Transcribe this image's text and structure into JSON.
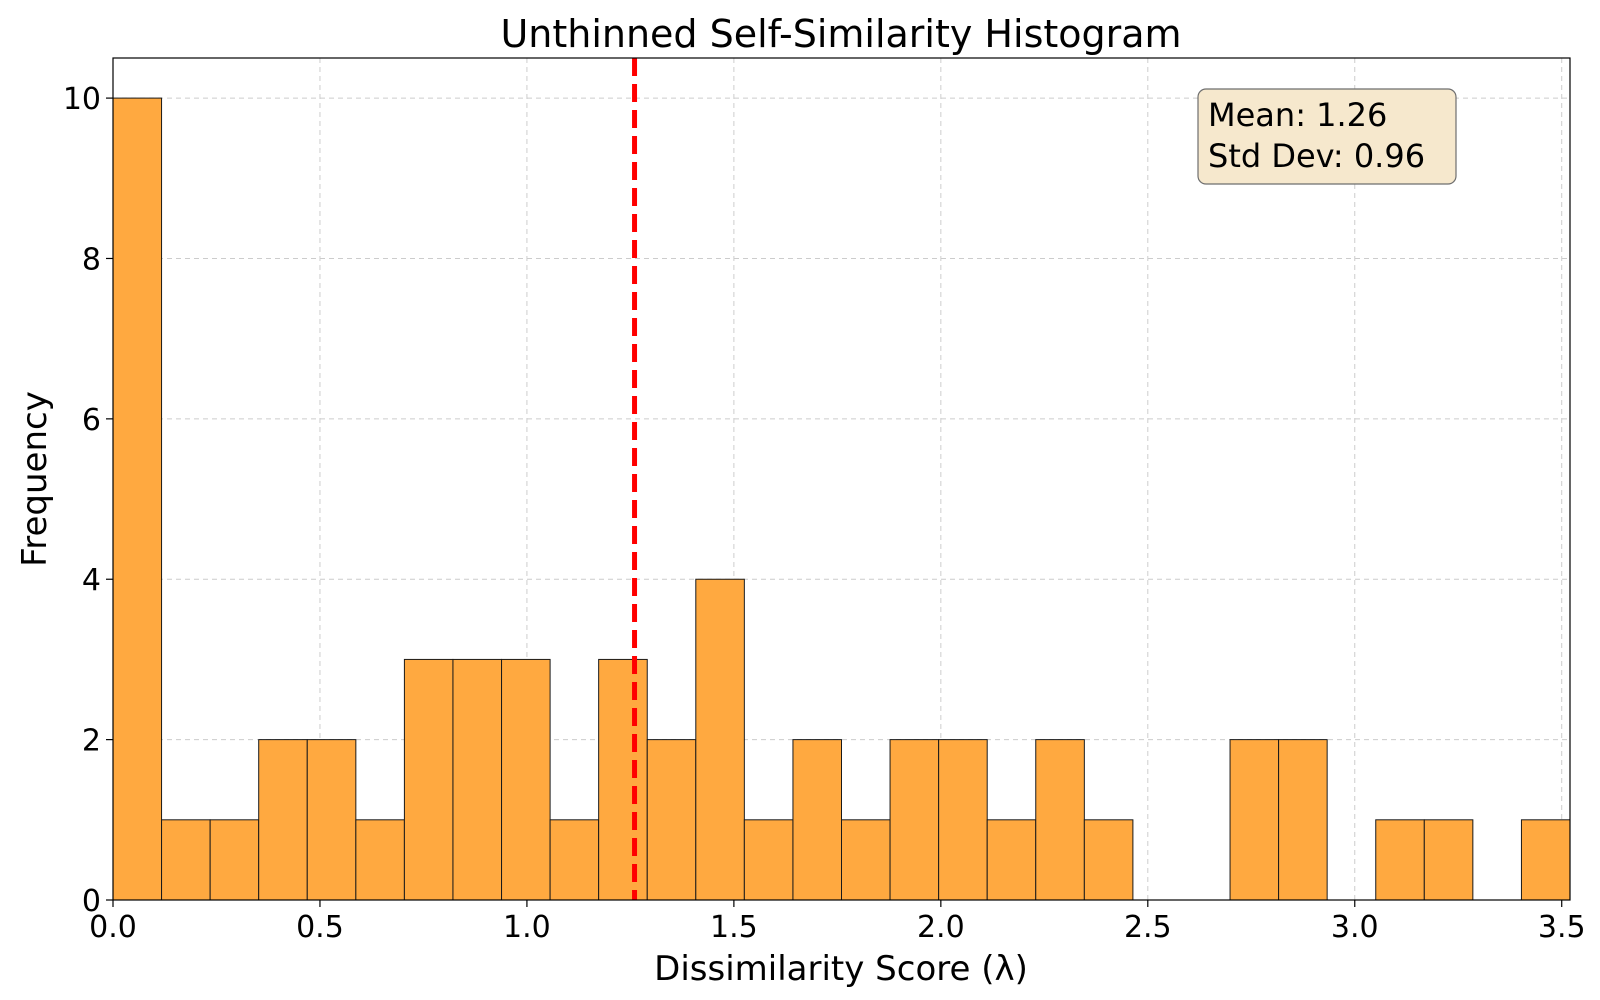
{
  "chart_data": {
    "type": "bar",
    "title": "Unthinned Self-Similarity Histogram",
    "xlabel": "Dissimilarity Score (λ)",
    "ylabel": "Frequency",
    "xlim": [
      0.0,
      3.52
    ],
    "ylim": [
      0,
      10.5
    ],
    "bin_edges": [
      0.0,
      0.1173,
      0.2347,
      0.352,
      0.4693,
      0.5867,
      0.704,
      0.8213,
      0.9387,
      1.056,
      1.1733,
      1.2907,
      1.408,
      1.5253,
      1.6427,
      1.76,
      1.8773,
      1.9947,
      2.112,
      2.2293,
      2.3467,
      2.464,
      2.5813,
      2.6987,
      2.816,
      2.9333,
      3.0507,
      3.168,
      3.2853,
      3.4027,
      3.52
    ],
    "values": [
      10,
      1,
      1,
      2,
      2,
      1,
      3,
      3,
      3,
      1,
      3,
      2,
      4,
      1,
      2,
      1,
      2,
      2,
      1,
      2,
      1,
      0,
      0,
      2,
      2,
      0,
      1,
      1,
      0,
      1
    ],
    "xticks": [
      "0.0",
      "0.5",
      "1.0",
      "1.5",
      "2.0",
      "2.5",
      "3.0",
      "3.5"
    ],
    "xtick_values": [
      0.0,
      0.5,
      1.0,
      1.5,
      2.0,
      2.5,
      3.0,
      3.5
    ],
    "yticks": [
      "0",
      "2",
      "4",
      "6",
      "8",
      "10"
    ],
    "ytick_values": [
      0,
      2,
      4,
      6,
      8,
      10
    ],
    "mean": 1.26,
    "stats_lines": [
      "Mean: 1.26",
      "Std Dev: 0.96"
    ],
    "grid": true,
    "stats_box_position": "top-right",
    "colors": {
      "bar_fill": "#ffa940",
      "bar_edge": "#1a1a1a",
      "mean_line": "#ff0000",
      "stats_box": "#f6e8cd",
      "grid": "#cccccc"
    }
  }
}
